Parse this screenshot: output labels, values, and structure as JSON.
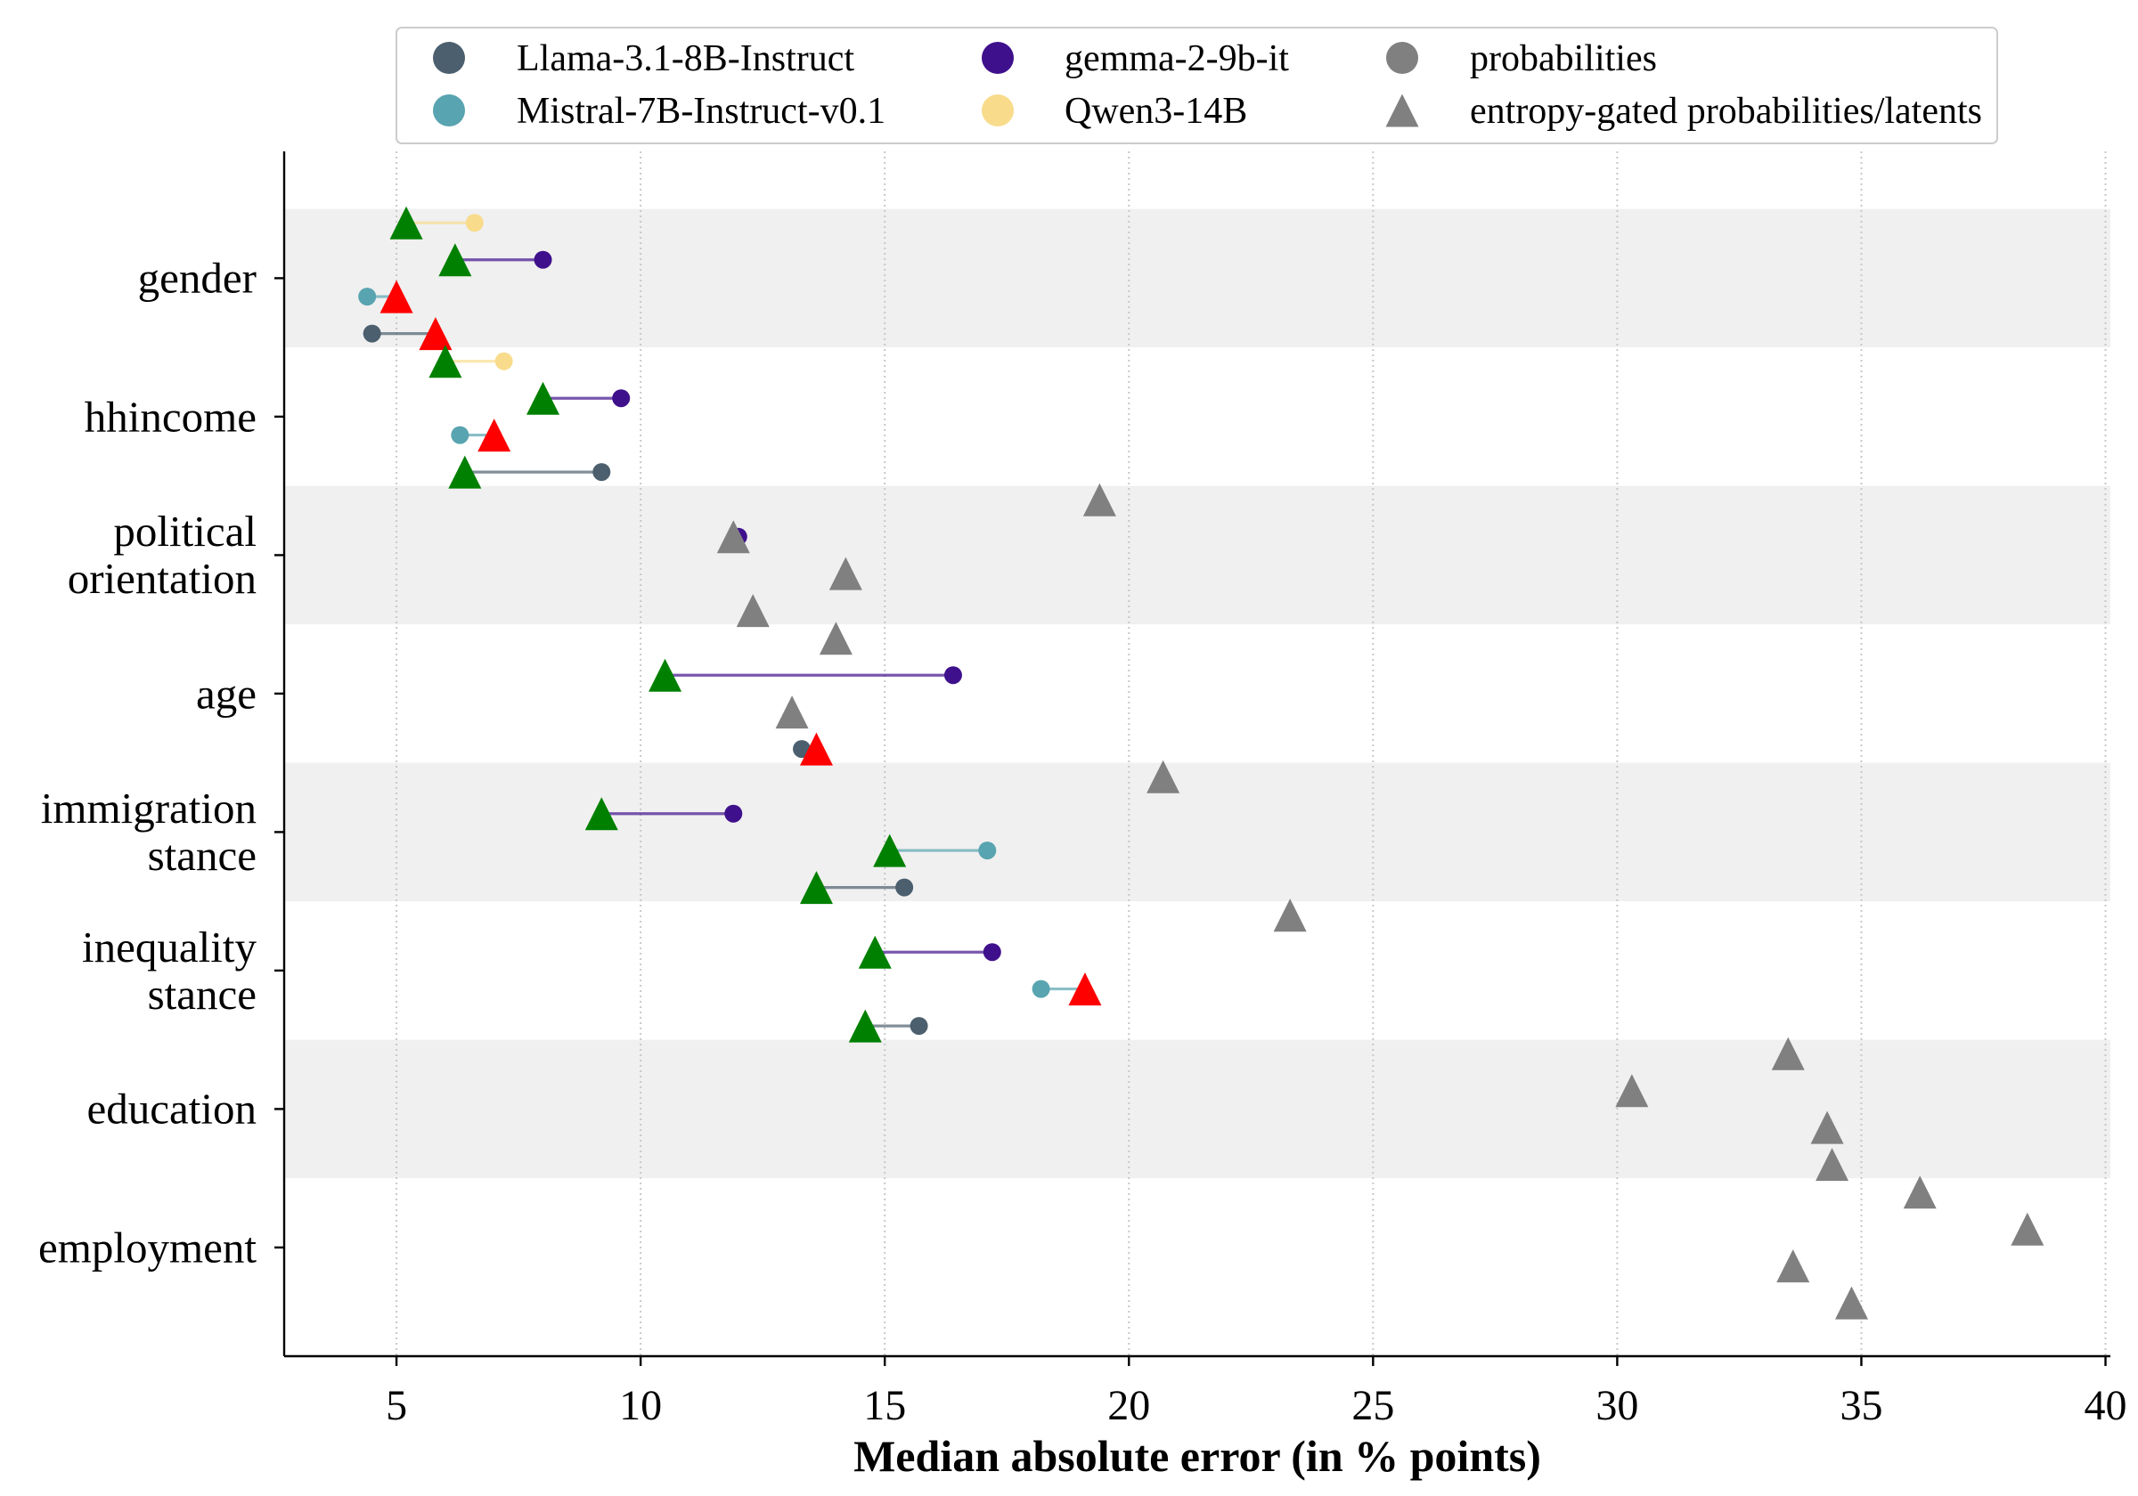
{
  "chart_data": {
    "type": "scatter",
    "xlabel": "Median absolute error (in % points)",
    "xlim": [
      2.7,
      40.1
    ],
    "xticks": [
      5,
      10,
      15,
      20,
      25,
      30,
      35,
      40
    ],
    "grid": "x-axis, dotted",
    "legend_position": "top (above plot)",
    "band_color": "#f0f0f0",
    "categories": [
      "gender",
      "hhincome",
      "political\norientation",
      "age",
      "immigration\nstance",
      "inequality\nstance",
      "education",
      "employment"
    ],
    "marker_types": [
      {
        "label": "probabilities",
        "shape": "circle",
        "color": "#808080"
      },
      {
        "label": "entropy-gated probabilities/latents",
        "shape": "triangle",
        "color": "#808080"
      }
    ],
    "series": [
      {
        "name": "Llama-3.1-8B-Instruct",
        "color": "#4c5f6e",
        "probabilities": [
          4.5,
          9.2,
          null,
          13.3,
          15.4,
          15.7,
          null,
          null
        ],
        "entropy_gated": [
          5.8,
          6.4,
          12.3,
          13.6,
          13.6,
          14.6,
          34.4,
          34.8
        ],
        "entropy_gated_colors": [
          "#ff0000",
          "#008000",
          "#808080",
          "#ff0000",
          "#008000",
          "#008000",
          "#808080",
          "#808080"
        ]
      },
      {
        "name": "Mistral-7B-Instruct-v0.1",
        "color": "#58a4b0",
        "probabilities": [
          4.4,
          6.3,
          null,
          null,
          17.1,
          18.2,
          null,
          null
        ],
        "entropy_gated": [
          5.0,
          7.0,
          14.2,
          13.1,
          15.1,
          19.1,
          34.3,
          33.6
        ],
        "entropy_gated_colors": [
          "#ff0000",
          "#ff0000",
          "#808080",
          "#808080",
          "#008000",
          "#ff0000",
          "#808080",
          "#808080"
        ]
      },
      {
        "name": "gemma-2-9b-it",
        "color": "#3f108c",
        "probabilities": [
          8.0,
          9.6,
          12.0,
          16.4,
          11.9,
          17.2,
          null,
          null
        ],
        "entropy_gated": [
          6.2,
          8.0,
          11.9,
          10.5,
          9.2,
          14.8,
          30.3,
          38.4
        ],
        "entropy_gated_colors": [
          "#008000",
          "#008000",
          "#808080",
          "#008000",
          "#008000",
          "#008000",
          "#808080",
          "#808080"
        ]
      },
      {
        "name": "Qwen3-14B",
        "color": "#f8dc8c",
        "probabilities": [
          6.6,
          7.2,
          null,
          null,
          null,
          null,
          null,
          null
        ],
        "entropy_gated": [
          5.2,
          6.0,
          19.4,
          14.0,
          20.7,
          23.3,
          33.5,
          36.2
        ],
        "entropy_gated_colors": [
          "#008000",
          "#008000",
          "#808080",
          "#808080",
          "#808080",
          "#808080",
          "#808080",
          "#808080"
        ]
      }
    ]
  }
}
